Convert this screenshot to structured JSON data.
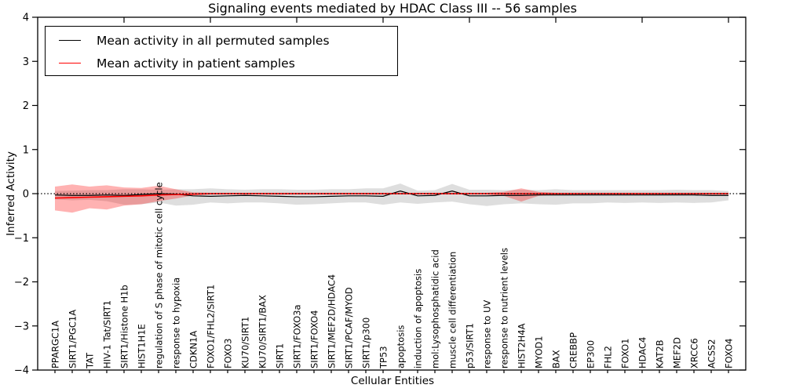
{
  "title": "Signaling events mediated by HDAC Class III -- 56 samples",
  "legend": {
    "items": [
      {
        "label": "Mean activity in all permuted samples",
        "color": "#000000"
      },
      {
        "label": "Mean activity in patient samples",
        "color": "#ff0000"
      }
    ]
  },
  "axes": {
    "xlabel": "Cellular Entities",
    "ylabel": "Inferred Activity"
  },
  "chart_data": {
    "type": "line",
    "title": "Signaling events mediated by HDAC Class III -- 56 samples",
    "xlabel": "Cellular Entities",
    "ylabel": "Inferred Activity",
    "ylim": [
      -4,
      4
    ],
    "yticks": [
      4,
      3,
      2,
      1,
      0,
      -1,
      -2,
      -3,
      -4
    ],
    "grid": false,
    "zero_line": {
      "style": "dotted",
      "color": "#000000",
      "y": 0
    },
    "legend_position": "upper-left",
    "top_axis_tick_indices": [
      4,
      9,
      14,
      19,
      24,
      29,
      34,
      39
    ],
    "categories": [
      "PPARGC1A",
      "SIRT1/PGC1A",
      "TAT",
      "HIV-1 Tat/SIRT1",
      "SIRT1/Histone H1b",
      "HIST1H1E",
      "regulation of S phase of mitotic cell cycle",
      "response to hypoxia",
      "CDKN1A",
      "FOXO1/FHL2/SIRT1",
      "FOXO3",
      "KU70/SIRT1",
      "KU70/SIRT1/BAX",
      "SIRT1",
      "SIRT1/FOXO3a",
      "SIRT1/FOXO4",
      "SIRT1/MEF2D/HDAC4",
      "SIRT1/PCAF/MYOD",
      "SIRT1/p300",
      "TP53",
      "apoptosis",
      "induction of apoptosis",
      "mol:Lysophosphatidic acid",
      "muscle cell differentiation",
      "p53/SIRT1",
      "response to UV",
      "response to nutrient levels",
      "HIST2H4A",
      "MYOD1",
      "BAX",
      "CREBBP",
      "EP300",
      "FHL2",
      "FOXO1",
      "HDAC4",
      "KAT2B",
      "MEF2D",
      "XRCC6",
      "ACSS2",
      "FOXO4"
    ],
    "series": [
      {
        "name": "Mean activity in all permuted samples",
        "color": "#000000",
        "width": 1.2,
        "values": [
          -0.03,
          -0.04,
          -0.04,
          -0.03,
          -0.04,
          -0.02,
          0.0,
          -0.01,
          -0.05,
          -0.06,
          -0.05,
          -0.04,
          -0.05,
          -0.06,
          -0.07,
          -0.07,
          -0.06,
          -0.05,
          -0.05,
          -0.06,
          0.06,
          -0.05,
          -0.04,
          0.06,
          -0.05,
          -0.05,
          -0.04,
          -0.04,
          -0.03,
          -0.03,
          -0.03,
          -0.03,
          -0.03,
          -0.03,
          -0.03,
          -0.03,
          -0.03,
          -0.03,
          -0.04,
          -0.04
        ]
      },
      {
        "name": "Mean activity in patient samples",
        "color": "#ff0000",
        "width": 1.6,
        "values": [
          -0.1,
          -0.09,
          -0.08,
          -0.07,
          -0.06,
          -0.05,
          -0.03,
          -0.02,
          -0.01,
          0,
          0,
          0,
          0,
          0,
          0,
          0,
          0,
          0,
          0,
          0,
          0,
          0,
          0,
          0,
          0,
          0,
          0,
          0,
          0,
          0,
          0,
          0,
          0,
          0,
          0,
          0,
          0,
          0,
          0,
          0
        ]
      }
    ],
    "bands": [
      {
        "name": "permuted-samples-band",
        "color": "#888888",
        "opacity": 0.28,
        "upper": [
          0.06,
          0.07,
          0.08,
          0.08,
          0.1,
          0.1,
          0.09,
          0.1,
          0.1,
          0.12,
          0.1,
          0.09,
          0.1,
          0.1,
          0.09,
          0.09,
          0.1,
          0.1,
          0.12,
          0.12,
          0.23,
          0.07,
          0.08,
          0.22,
          0.09,
          0.09,
          0.08,
          0.09,
          0.08,
          0.1,
          0.08,
          0.08,
          0.08,
          0.08,
          0.08,
          0.08,
          0.09,
          0.08,
          0.08,
          0.06
        ],
        "lower": [
          -0.13,
          -0.15,
          -0.14,
          -0.17,
          -0.25,
          -0.24,
          -0.2,
          -0.27,
          -0.25,
          -0.2,
          -0.22,
          -0.2,
          -0.2,
          -0.22,
          -0.25,
          -0.24,
          -0.22,
          -0.2,
          -0.2,
          -0.25,
          -0.2,
          -0.23,
          -0.2,
          -0.18,
          -0.24,
          -0.28,
          -0.24,
          -0.22,
          -0.24,
          -0.25,
          -0.22,
          -0.22,
          -0.2,
          -0.21,
          -0.2,
          -0.21,
          -0.2,
          -0.21,
          -0.2,
          -0.15
        ]
      },
      {
        "name": "patient-samples-band",
        "color": "#ff0000",
        "opacity": 0.3,
        "upper": [
          0.16,
          0.21,
          0.16,
          0.19,
          0.14,
          0.13,
          0.18,
          0.1,
          0.03,
          0.02,
          0.02,
          0.02,
          0.02,
          0.02,
          0.02,
          0.02,
          0.02,
          0.02,
          0.02,
          0.02,
          0.02,
          0.02,
          0.02,
          0.02,
          0.02,
          0.02,
          0.04,
          0.12,
          0.04,
          0.02,
          0.02,
          0.02,
          0.02,
          0.02,
          0.02,
          0.02,
          0.02,
          0.02,
          0.02,
          0.02
        ],
        "lower": [
          -0.38,
          -0.43,
          -0.33,
          -0.36,
          -0.27,
          -0.24,
          -0.17,
          -0.11,
          -0.04,
          -0.02,
          -0.02,
          -0.02,
          -0.02,
          -0.02,
          -0.02,
          -0.02,
          -0.02,
          -0.02,
          -0.02,
          -0.02,
          -0.02,
          -0.02,
          -0.02,
          -0.02,
          -0.02,
          -0.02,
          -0.05,
          -0.18,
          -0.05,
          -0.02,
          -0.02,
          -0.02,
          -0.02,
          -0.02,
          -0.02,
          -0.02,
          -0.02,
          -0.02,
          -0.02,
          -0.02
        ]
      }
    ]
  }
}
